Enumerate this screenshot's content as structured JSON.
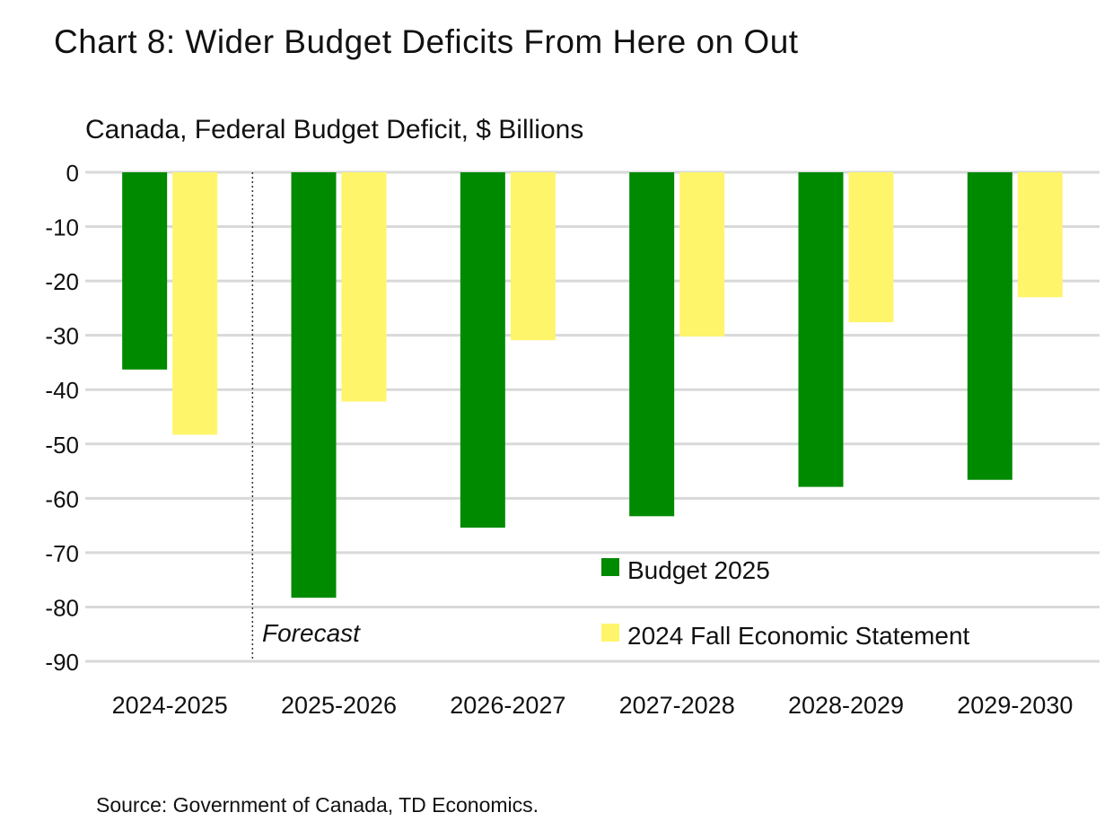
{
  "title": "Chart 8: Wider Budget Deficits From Here on Out",
  "subtitle": "Canada, Federal Budget Deficit, $ Billions",
  "source": "Source: Government of Canada, TD Economics.",
  "chart_data": {
    "type": "bar",
    "categories": [
      "2024-2025",
      "2025-2026",
      "2026-2027",
      "2027-2028",
      "2028-2029",
      "2029-2030"
    ],
    "series": [
      {
        "name": "Budget 2025",
        "color": "#008a00",
        "values": [
          -36.3,
          -78.3,
          -65.4,
          -63.3,
          -57.9,
          -56.6
        ]
      },
      {
        "name": "2024 Fall Economic Statement",
        "color": "#fff56b",
        "values": [
          -48.3,
          -42.2,
          -30.9,
          -30.2,
          -27.6,
          -23.0
        ]
      }
    ],
    "ylim": [
      -90,
      0
    ],
    "yticks": [
      0,
      -10,
      -20,
      -30,
      -40,
      -50,
      -60,
      -70,
      -80,
      -90
    ],
    "grid": true,
    "legend": "bottom-right",
    "annotation": {
      "text": "Forecast",
      "after_category": "2024-2025"
    }
  }
}
